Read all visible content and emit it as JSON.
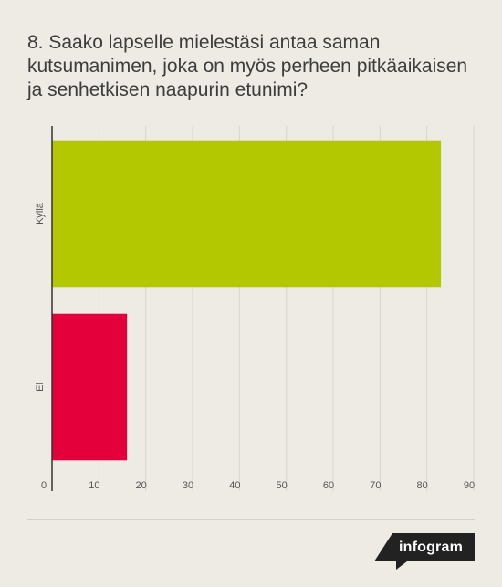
{
  "chart_data": {
    "type": "bar",
    "orientation": "horizontal",
    "title": "8. Saako lapselle mielestäsi antaa saman kutsumanimen, joka on myös perheen pitkäaikaisen ja senhetkisen naapurin etunimi?",
    "categories": [
      "Kyllä",
      "Ei"
    ],
    "values": [
      83,
      16
    ],
    "colors": [
      "#b3c800",
      "#e4003b"
    ],
    "xlim": [
      0,
      90
    ],
    "xticks": [
      0,
      10,
      20,
      30,
      40,
      50,
      60,
      70,
      80,
      90
    ],
    "grid": true
  },
  "branding": {
    "label": "infogram",
    "color": "#222222"
  },
  "colors": {
    "background": "#eeebe4",
    "gridline": "#d8d4cc",
    "axis": "#333333",
    "tick_text": "#555555"
  }
}
